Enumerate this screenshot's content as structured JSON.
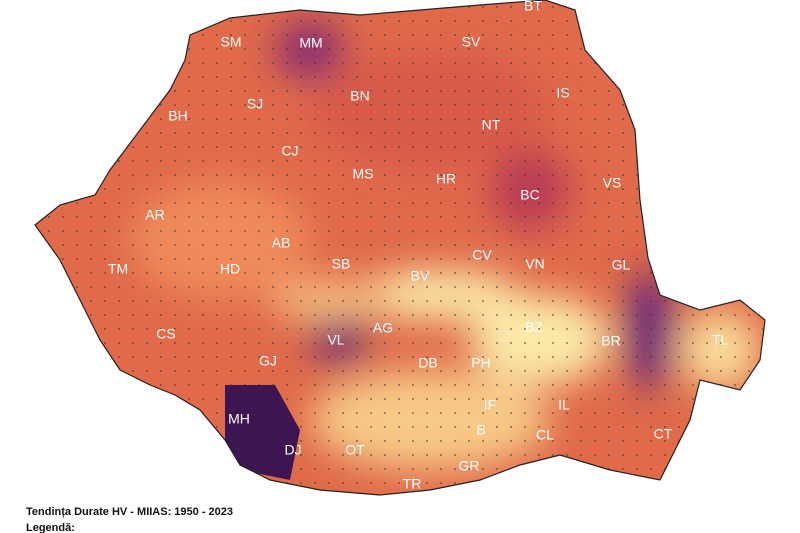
{
  "map": {
    "counties": [
      "BT",
      "SM",
      "MM",
      "SV",
      "BN",
      "IS",
      "SJ",
      "BH",
      "NT",
      "CJ",
      "MS",
      "HR",
      "BC",
      "VS",
      "AR",
      "AB",
      "CV",
      "TM",
      "HD",
      "SB",
      "BV",
      "VN",
      "GL",
      "CS",
      "AG",
      "VL",
      "BZ",
      "BR",
      "TL",
      "GJ",
      "DB",
      "PH",
      "MH",
      "IF",
      "IL",
      "DJ",
      "OT",
      "B",
      "CL",
      "CT",
      "GR",
      "TR"
    ],
    "title": "Tendința Durate HV - MIIAS: 1950 - 2023",
    "legend_title": "Legendă:"
  }
}
